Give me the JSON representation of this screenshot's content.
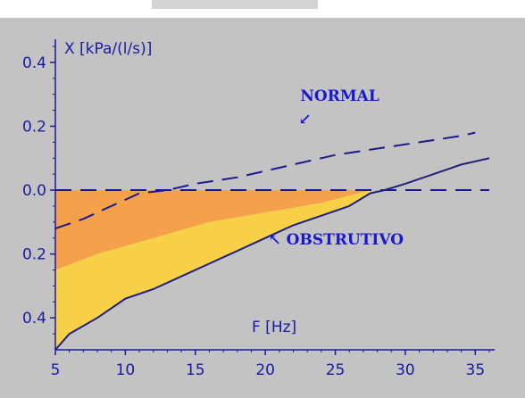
{
  "chart_data": {
    "type": "line",
    "ylabel": "X [kPa/(l/s)]",
    "xlabel": "F [Hz]",
    "xlim": [
      5,
      36
    ],
    "ylim": [
      -0.5,
      0.45
    ],
    "x_ticks": [
      5,
      10,
      15,
      20,
      25,
      30,
      35
    ],
    "y_ticks": [
      {
        "value": 0.4,
        "label": "0.4"
      },
      {
        "value": 0.2,
        "label": "0.2"
      },
      {
        "value": 0.0,
        "label": "0.0"
      },
      {
        "value": -0.2,
        "label": "0.2"
      },
      {
        "value": -0.4,
        "label": "0.4"
      }
    ],
    "series": [
      {
        "name": "NORMAL",
        "style": "dashed",
        "color": "#1a1a90",
        "points": [
          [
            5,
            -0.12
          ],
          [
            7,
            -0.09
          ],
          [
            9,
            -0.05
          ],
          [
            11,
            -0.01
          ],
          [
            13,
            0.0
          ],
          [
            15,
            0.02
          ],
          [
            18,
            0.04
          ],
          [
            20,
            0.06
          ],
          [
            22,
            0.08
          ],
          [
            25,
            0.11
          ],
          [
            28,
            0.13
          ],
          [
            31,
            0.15
          ],
          [
            34,
            0.17
          ],
          [
            35,
            0.18
          ]
        ]
      },
      {
        "name": "OBSTRUTIVO",
        "style": "solid",
        "color": "#20207a",
        "points": [
          [
            5,
            -0.5
          ],
          [
            6,
            -0.45
          ],
          [
            8,
            -0.4
          ],
          [
            10,
            -0.34
          ],
          [
            12,
            -0.31
          ],
          [
            14,
            -0.27
          ],
          [
            16,
            -0.23
          ],
          [
            18,
            -0.19
          ],
          [
            20,
            -0.15
          ],
          [
            22,
            -0.11
          ],
          [
            24,
            -0.08
          ],
          [
            26,
            -0.05
          ],
          [
            27.5,
            -0.01
          ],
          [
            28.5,
            0.0
          ],
          [
            30,
            0.02
          ],
          [
            32,
            0.05
          ],
          [
            34,
            0.08
          ],
          [
            36,
            0.1
          ]
        ]
      }
    ],
    "reference_line": {
      "y": 0.0,
      "style": "dashed",
      "color": "#1a1a90"
    },
    "regions": [
      {
        "color": "#f5a04a",
        "upper": [
          [
            5,
            0.0
          ],
          [
            27.5,
            0.0
          ]
        ],
        "lower": [
          [
            5,
            -0.25
          ],
          [
            8,
            -0.2
          ],
          [
            12,
            -0.15
          ],
          [
            16,
            -0.1
          ],
          [
            20,
            -0.07
          ],
          [
            24,
            -0.04
          ],
          [
            27.5,
            0.0
          ]
        ]
      },
      {
        "color": "#f8d048",
        "upper": [
          [
            5,
            -0.25
          ],
          [
            8,
            -0.2
          ],
          [
            12,
            -0.15
          ],
          [
            16,
            -0.1
          ],
          [
            20,
            -0.07
          ],
          [
            24,
            -0.04
          ],
          [
            27.5,
            0.0
          ]
        ],
        "lower": [
          [
            5,
            -0.5
          ],
          [
            6,
            -0.45
          ],
          [
            8,
            -0.4
          ],
          [
            10,
            -0.34
          ],
          [
            12,
            -0.31
          ],
          [
            14,
            -0.27
          ],
          [
            16,
            -0.23
          ],
          [
            18,
            -0.19
          ],
          [
            20,
            -0.15
          ],
          [
            22,
            -0.11
          ],
          [
            24,
            -0.08
          ],
          [
            26,
            -0.05
          ],
          [
            27.5,
            -0.01
          ]
        ]
      }
    ],
    "annotations": [
      {
        "text": "NORMAL",
        "arrow": "↙",
        "x": 22.5,
        "y": 0.28
      },
      {
        "text": "OBSTRUTIVO",
        "arrow": "↖",
        "x": 21.5,
        "y": -0.17
      }
    ],
    "grid": false,
    "colors": {
      "background": "#c3c3c3",
      "axis": "#1a1aa0",
      "annotation": "#1818d0"
    }
  }
}
